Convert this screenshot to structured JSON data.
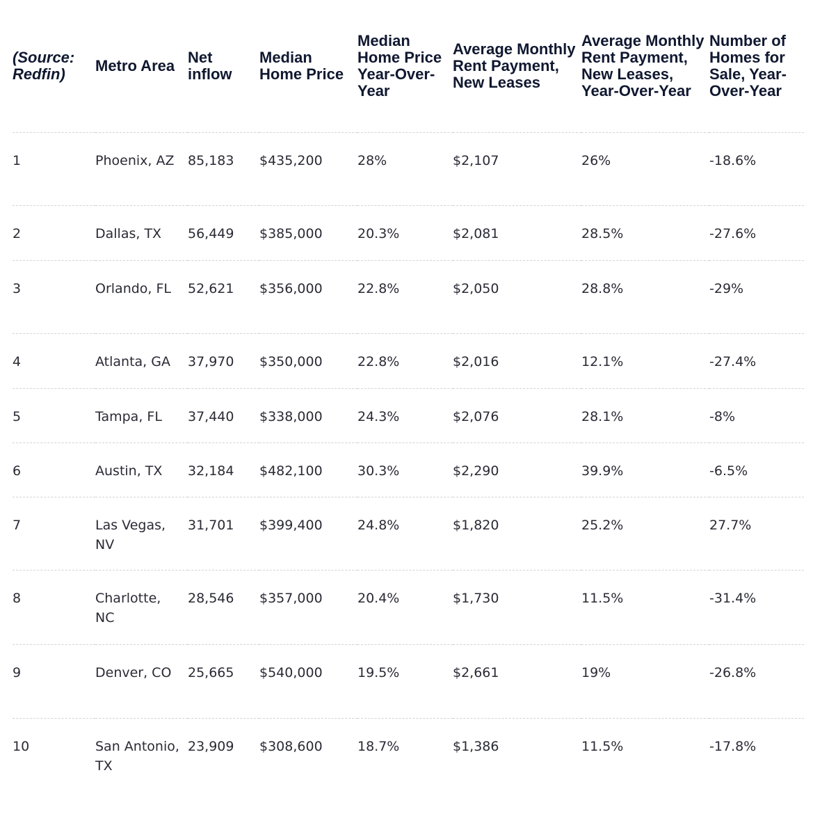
{
  "table": {
    "headers": [
      "(Source: Redfin)",
      "Metro Area",
      "Net inflow",
      "Median Home Price",
      "Median Home Price Year-Over-Year",
      "Average Monthly Rent Payment, New Leases",
      "Average Monthly Rent Payment, New Leases, Year-Over-Year",
      "Number of Homes for Sale, Year-Over-Year"
    ],
    "rows": [
      [
        "1",
        "Phoenix, AZ",
        "85,183",
        "$435,200",
        "28%",
        "$2,107",
        "26%",
        "-18.6%"
      ],
      [
        "2",
        "Dallas, TX",
        "56,449",
        "$385,000",
        "20.3%",
        "$2,081",
        "28.5%",
        "-27.6%"
      ],
      [
        "3",
        "Orlando, FL",
        "52,621",
        "$356,000",
        "22.8%",
        "$2,050",
        "28.8%",
        "-29%"
      ],
      [
        "4",
        "Atlanta, GA",
        "37,970",
        "$350,000",
        "22.8%",
        "$2,016",
        "12.1%",
        "-27.4%"
      ],
      [
        "5",
        "Tampa, FL",
        "37,440",
        "$338,000",
        "24.3%",
        "$2,076",
        "28.1%",
        "-8%"
      ],
      [
        "6",
        "Austin, TX",
        "32,184",
        "$482,100",
        "30.3%",
        "$2,290",
        "39.9%",
        "-6.5%"
      ],
      [
        "7",
        "Las Vegas, NV",
        "31,701",
        "$399,400",
        "24.8%",
        "$1,820",
        "25.2%",
        "27.7%"
      ],
      [
        "8",
        "Charlotte, NC",
        "28,546",
        "$357,000",
        "20.4%",
        "$1,730",
        "11.5%",
        "-31.4%"
      ],
      [
        "9",
        "Denver, CO",
        "25,665",
        "$540,000",
        "19.5%",
        "$2,661",
        "19%",
        "-26.8%"
      ],
      [
        "10",
        "San Antonio, TX",
        "23,909",
        "$308,600",
        "18.7%",
        "$1,386",
        "11.5%",
        "-17.8%"
      ]
    ]
  }
}
